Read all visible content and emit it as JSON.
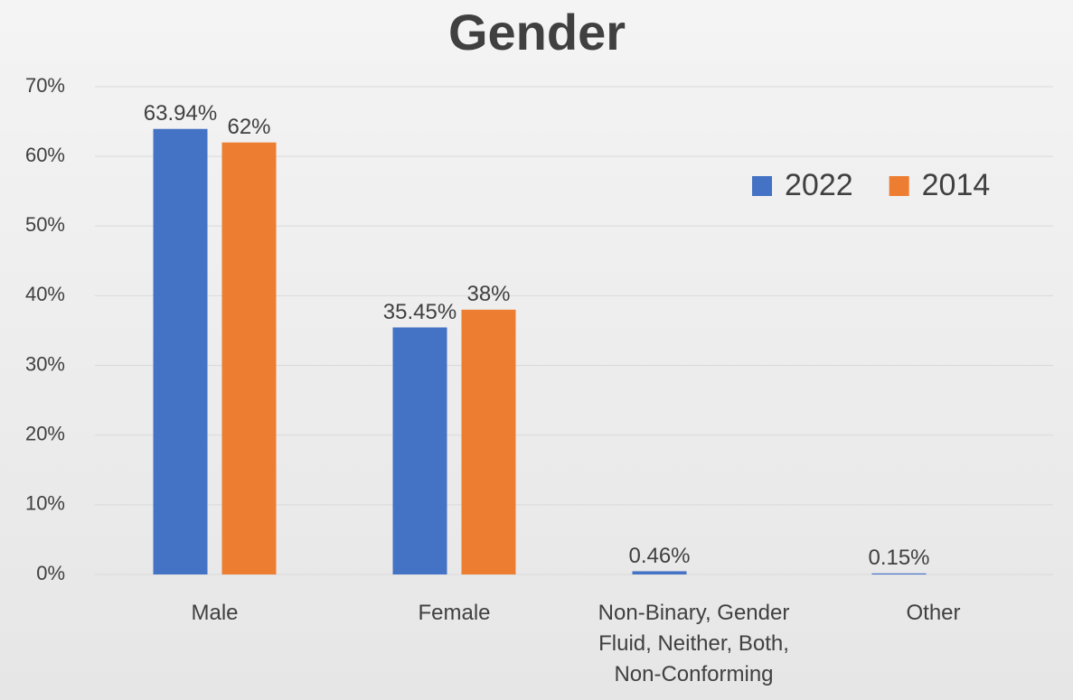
{
  "chart_data": {
    "type": "bar",
    "title": "Gender",
    "categories": [
      "Male",
      "Female",
      "Non-Binary, Gender Fluid, Neither, Both, Non-Conforming",
      "Other"
    ],
    "series": [
      {
        "name": "2022",
        "color": "#4472c4",
        "values": [
          63.94,
          35.45,
          0.46,
          0.15
        ],
        "value_labels": [
          "63.94%",
          "35.45%",
          "0.46%",
          "0.15%"
        ]
      },
      {
        "name": "2014",
        "color": "#ed7d31",
        "values": [
          62,
          38,
          null,
          null
        ],
        "value_labels": [
          "62%",
          "38%",
          null,
          null
        ]
      }
    ],
    "ylim": [
      0,
      70
    ],
    "yticks": [
      {
        "value": 0,
        "label": "0%"
      },
      {
        "value": 10,
        "label": "10%"
      },
      {
        "value": 20,
        "label": "20%"
      },
      {
        "value": 30,
        "label": "30%"
      },
      {
        "value": 40,
        "label": "40%"
      },
      {
        "value": 50,
        "label": "50%"
      },
      {
        "value": 60,
        "label": "60%"
      },
      {
        "value": 70,
        "label": "70%"
      }
    ],
    "grid": true,
    "legend": "top-right"
  }
}
